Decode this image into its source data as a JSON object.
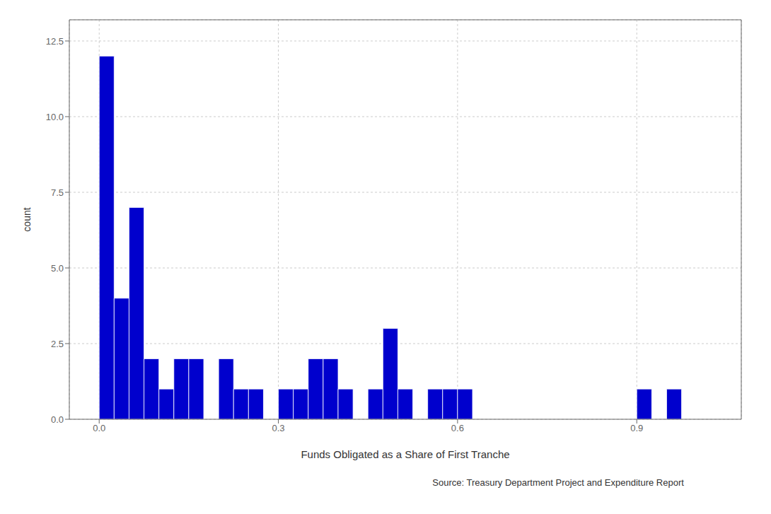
{
  "chart_data": {
    "type": "histogram",
    "x_label": "Funds Obligated as a Share of First Tranche",
    "y_label": "count",
    "annotations": [
      "Source: Treasury Department Project and Expenditure Report"
    ],
    "bins": [
      -0.025,
      0.0,
      0.025,
      0.05,
      0.075,
      0.1,
      0.125,
      0.15,
      0.175,
      0.2,
      0.225,
      0.25,
      0.275,
      0.3,
      0.325,
      0.35,
      0.375,
      0.4,
      0.425,
      0.45,
      0.475,
      0.5,
      0.525,
      0.55,
      0.575,
      0.6,
      0.625,
      0.65,
      0.675,
      0.7,
      0.725,
      0.75,
      0.775,
      0.8,
      0.825,
      0.85,
      0.875,
      0.9,
      0.925,
      0.95,
      0.975,
      1.0,
      1.025,
      1.05
    ],
    "values": [
      0,
      12,
      4,
      7,
      2,
      1,
      2,
      2,
      0,
      2,
      1,
      1,
      0,
      1,
      1,
      2,
      2,
      1,
      0,
      1,
      3,
      1,
      0,
      1,
      1,
      1,
      0,
      0,
      0,
      0,
      0,
      0,
      0,
      0,
      0,
      0,
      0,
      1,
      0,
      1,
      0,
      0,
      0
    ],
    "color": "#0000CD",
    "xlim": [
      -0.05,
      1.075
    ],
    "ylim": [
      0.0,
      13.2
    ],
    "xticks": [
      {
        "value": 0.0,
        "label": "0.0"
      },
      0.3,
      0.6,
      0.9
    ],
    "yticks": [
      {
        "value": 0.0,
        "label": "0.0"
      },
      2.5,
      {
        "value": 5.0,
        "label": "5.0"
      },
      7.5,
      {
        "value": 10.0,
        "label": "10.0"
      },
      12.5
    ],
    "grid": true
  }
}
